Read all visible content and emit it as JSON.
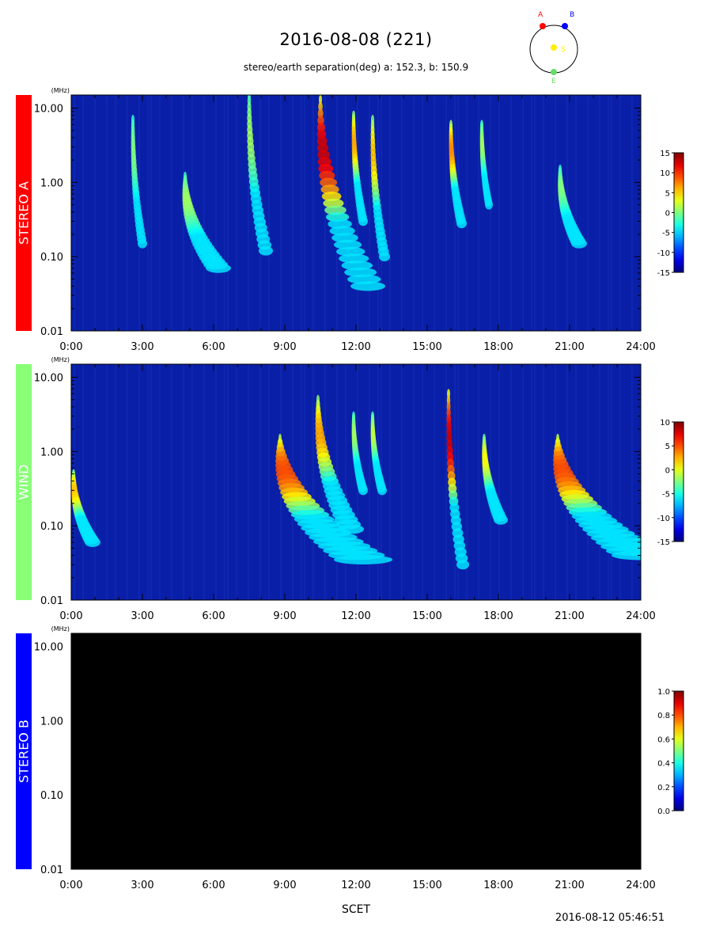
{
  "header": {
    "title": "2016-08-08 (221)",
    "subtitle": "stereo/earth separation(deg) a: 152.3, b: 150.9"
  },
  "orbit_diagram": {
    "label_a": "A",
    "label_b": "B",
    "label_s": "S",
    "label_e": "E",
    "colors": {
      "a": "#ff0000",
      "b": "#0000ff",
      "s": "#ffee00",
      "e": "#66dd66"
    }
  },
  "footer": {
    "x_label": "SCET",
    "generated": "2016-08-12 05:46:51"
  },
  "chart_data": [
    {
      "type": "heatmap",
      "instrument": "STEREO A",
      "label_color": "#ff0000",
      "unit_label": "(MHz)",
      "y_scale": "log",
      "ylim": [
        0.01,
        15
      ],
      "y_ticks": [
        "10.00",
        "1.00",
        "0.10",
        "0.01"
      ],
      "x_ticks": [
        "0:00",
        "3:00",
        "6:00",
        "9:00",
        "12:00",
        "15:00",
        "18:00",
        "21:00",
        "24:00"
      ],
      "xlim_hours": [
        0,
        24
      ],
      "colorbar": {
        "min": -15,
        "max": 15,
        "ticks": [
          "15",
          "10",
          "5",
          "0",
          "-5",
          "-10",
          "-15"
        ]
      },
      "data_available": true,
      "bursts": [
        {
          "t_hours": 2.6,
          "f_high_mhz": 7,
          "f_low_mhz": 0.15,
          "drift_hours": 0.4,
          "intensity": 0.25
        },
        {
          "t_hours": 4.8,
          "f_high_mhz": 1.2,
          "f_low_mhz": 0.07,
          "drift_hours": 1.4,
          "intensity": 0.3
        },
        {
          "t_hours": 7.5,
          "f_high_mhz": 15,
          "f_low_mhz": 0.12,
          "drift_hours": 0.7,
          "intensity": 0.3
        },
        {
          "t_hours": 10.5,
          "f_high_mhz": 13,
          "f_low_mhz": 0.04,
          "drift_hours": 2.0,
          "intensity": 0.95
        },
        {
          "t_hours": 11.9,
          "f_high_mhz": 8,
          "f_low_mhz": 0.3,
          "drift_hours": 0.4,
          "intensity": 0.6
        },
        {
          "t_hours": 12.7,
          "f_high_mhz": 7,
          "f_low_mhz": 0.1,
          "drift_hours": 0.5,
          "intensity": 0.55
        },
        {
          "t_hours": 16.0,
          "f_high_mhz": 6,
          "f_low_mhz": 0.28,
          "drift_hours": 0.45,
          "intensity": 0.65
        },
        {
          "t_hours": 17.3,
          "f_high_mhz": 6,
          "f_low_mhz": 0.5,
          "drift_hours": 0.3,
          "intensity": 0.3
        },
        {
          "t_hours": 20.6,
          "f_high_mhz": 1.5,
          "f_low_mhz": 0.15,
          "drift_hours": 0.8,
          "intensity": 0.25
        }
      ]
    },
    {
      "type": "heatmap",
      "instrument": "WIND",
      "label_color": "#88ff77",
      "unit_label": "(MHz)",
      "y_scale": "log",
      "ylim": [
        0.01,
        15
      ],
      "y_ticks": [
        "10.00",
        "1.00",
        "0.10",
        "0.01"
      ],
      "x_ticks": [
        "0:00",
        "3:00",
        "6:00",
        "9:00",
        "12:00",
        "15:00",
        "18:00",
        "21:00",
        "24:00"
      ],
      "xlim_hours": [
        0,
        24
      ],
      "colorbar": {
        "min": -15,
        "max": 10,
        "ticks": [
          "10",
          "5",
          "0",
          "-5",
          "-10",
          "-15"
        ]
      },
      "data_available": true,
      "bursts": [
        {
          "t_hours": 0.1,
          "f_high_mhz": 0.5,
          "f_low_mhz": 0.06,
          "drift_hours": 0.8,
          "intensity": 0.55
        },
        {
          "t_hours": 8.8,
          "f_high_mhz": 1.5,
          "f_low_mhz": 0.035,
          "drift_hours": 3.5,
          "intensity": 0.75
        },
        {
          "t_hours": 10.4,
          "f_high_mhz": 5,
          "f_low_mhz": 0.09,
          "drift_hours": 1.4,
          "intensity": 0.6
        },
        {
          "t_hours": 11.9,
          "f_high_mhz": 3,
          "f_low_mhz": 0.3,
          "drift_hours": 0.4,
          "intensity": 0.3
        },
        {
          "t_hours": 12.7,
          "f_high_mhz": 3,
          "f_low_mhz": 0.3,
          "drift_hours": 0.4,
          "intensity": 0.35
        },
        {
          "t_hours": 15.9,
          "f_high_mhz": 6,
          "f_low_mhz": 0.03,
          "drift_hours": 0.6,
          "intensity": 0.95
        },
        {
          "t_hours": 17.4,
          "f_high_mhz": 1.5,
          "f_low_mhz": 0.12,
          "drift_hours": 0.7,
          "intensity": 0.45
        },
        {
          "t_hours": 20.5,
          "f_high_mhz": 1.5,
          "f_low_mhz": 0.04,
          "drift_hours": 3.5,
          "intensity": 0.75
        }
      ]
    },
    {
      "type": "heatmap",
      "instrument": "STEREO B",
      "label_color": "#0000ff",
      "unit_label": "(MHz)",
      "y_scale": "log",
      "ylim": [
        0.01,
        15
      ],
      "y_ticks": [
        "10.00",
        "1.00",
        "0.10",
        "0.01"
      ],
      "x_ticks": [
        "0:00",
        "3:00",
        "6:00",
        "9:00",
        "12:00",
        "15:00",
        "18:00",
        "21:00",
        "24:00"
      ],
      "xlim_hours": [
        0,
        24
      ],
      "colorbar": {
        "min": 0.0,
        "max": 1.0,
        "ticks": [
          "1.0",
          "0.8",
          "0.6",
          "0.4",
          "0.2",
          "0.0"
        ]
      },
      "data_available": false,
      "bursts": []
    }
  ]
}
